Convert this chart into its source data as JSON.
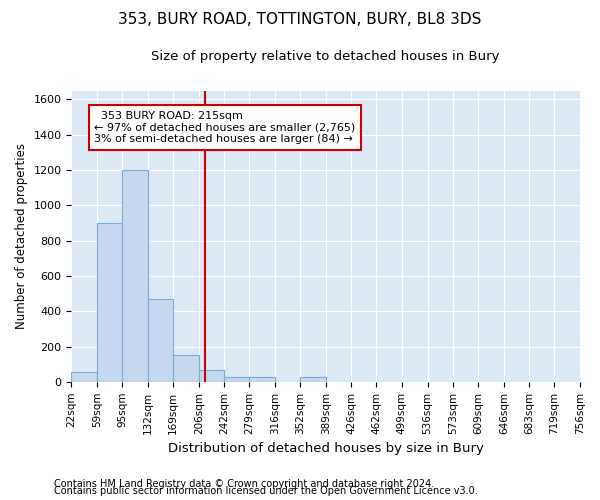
{
  "title1": "353, BURY ROAD, TOTTINGTON, BURY, BL8 3DS",
  "title2": "Size of property relative to detached houses in Bury",
  "xlabel": "Distribution of detached houses by size in Bury",
  "ylabel": "Number of detached properties",
  "footnote1": "Contains HM Land Registry data © Crown copyright and database right 2024.",
  "footnote2": "Contains public sector information licensed under the Open Government Licence v3.0.",
  "annotation_line1": "353 BURY ROAD: 215sqm",
  "annotation_line2": "← 97% of detached houses are smaller (2,765)",
  "annotation_line3": "3% of semi-detached houses are larger (84) →",
  "bar_color": "#c5d8ed",
  "bar_edge_color": "#7badd4",
  "vline_color": "#cc0000",
  "vline_x": 215,
  "plot_bg_color": "#dce9f5",
  "fig_bg_color": "#ffffff",
  "bin_edges": [
    22,
    59,
    95,
    132,
    169,
    206,
    242,
    279,
    316,
    352,
    389,
    426,
    462,
    499,
    536,
    573,
    609,
    646,
    683,
    719,
    756
  ],
  "bin_heights": [
    55,
    900,
    1200,
    470,
    150,
    65,
    30,
    25,
    0,
    25,
    0,
    0,
    0,
    0,
    0,
    0,
    0,
    0,
    0,
    0
  ],
  "ylim": [
    0,
    1650
  ],
  "yticks": [
    0,
    200,
    400,
    600,
    800,
    1000,
    1200,
    1400,
    1600
  ],
  "grid_color": "#ffffff",
  "annotation_box_edgecolor": "#cc0000",
  "title1_fontsize": 11,
  "title2_fontsize": 9.5,
  "ylabel_fontsize": 8.5,
  "xlabel_fontsize": 9.5,
  "tick_fontsize": 7.5,
  "footnote_fontsize": 7
}
